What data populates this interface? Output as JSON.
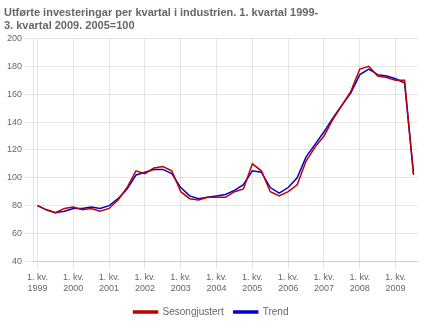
{
  "chart_data": {
    "type": "line",
    "title": "Utførte investeringar per kvartal i industrien. 1. kvartal 1999-\n3. kvartal 2009. 2005=100",
    "categories": [
      "1. kv.\n1999",
      null,
      null,
      null,
      "1. kv.\n2000",
      null,
      null,
      null,
      "1. kv.\n2001",
      null,
      null,
      null,
      "1. kv.\n2002",
      null,
      null,
      null,
      "1. kv.\n2003",
      null,
      null,
      null,
      "1. kv.\n2004",
      null,
      null,
      null,
      "1. kv.\n2005",
      null,
      null,
      null,
      "1. kv.\n2006",
      null,
      null,
      null,
      "1. kv.\n2007",
      null,
      null,
      null,
      "1. kv.\n2008",
      null,
      null,
      null,
      "1. kv.\n2009",
      null,
      null
    ],
    "series": [
      {
        "name": "Sesongjustert",
        "color": "#c00000",
        "values": [
          80,
          77,
          75,
          78,
          79,
          77,
          78,
          76,
          78,
          84,
          93,
          105,
          103,
          107,
          108,
          105,
          90,
          85,
          84,
          86,
          86,
          86,
          90,
          92,
          110,
          105,
          90,
          87,
          90,
          95,
          112,
          122,
          130,
          142,
          152,
          162,
          178,
          180,
          173,
          172,
          170,
          170,
          102
        ]
      },
      {
        "name": "Trend",
        "color": "#0000cc",
        "values": [
          80,
          77,
          75,
          76,
          78,
          78,
          79,
          78,
          80,
          85,
          92,
          102,
          104,
          106,
          106,
          103,
          93,
          87,
          85,
          86,
          87,
          88,
          91,
          95,
          105,
          104,
          93,
          89,
          93,
          100,
          115,
          124,
          133,
          143,
          152,
          161,
          174,
          178,
          174,
          173,
          171,
          168,
          103
        ]
      }
    ],
    "ylim": [
      40,
      200
    ],
    "yticks": [
      40,
      60,
      80,
      100,
      120,
      140,
      160,
      180,
      200
    ],
    "grid": true,
    "legend": "bottom"
  }
}
